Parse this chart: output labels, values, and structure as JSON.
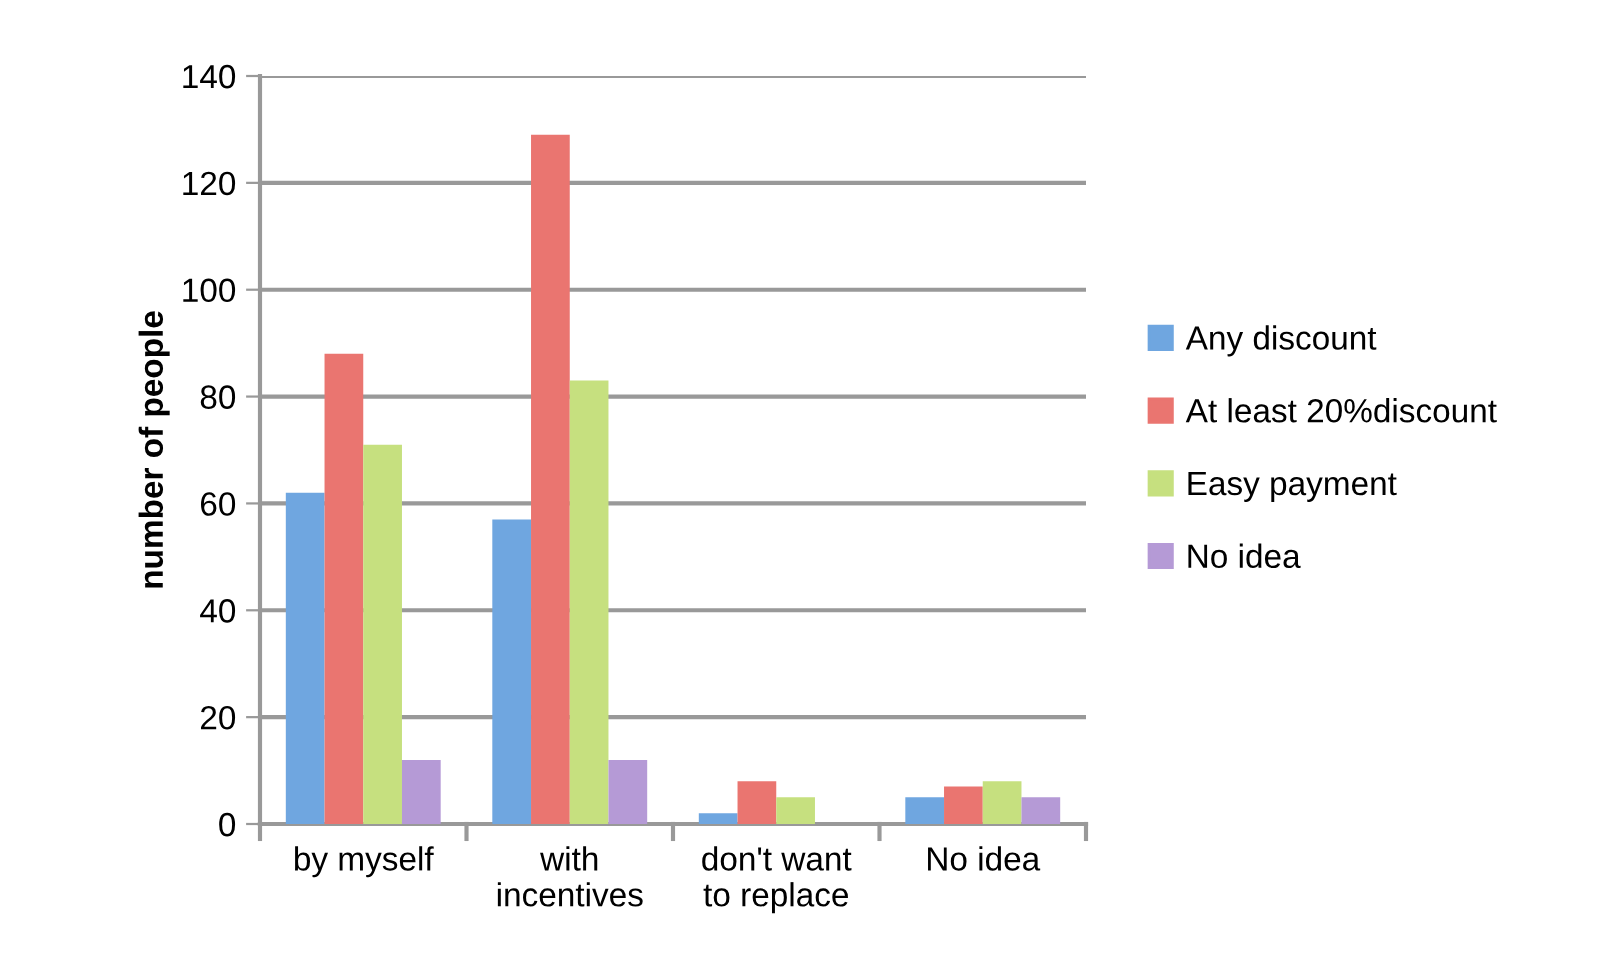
{
  "chart_data": {
    "type": "bar",
    "ylabel": "number of people",
    "categories": [
      "by myself",
      "with\nincentives",
      "don't want\nto replace",
      "No idea"
    ],
    "series": [
      {
        "name": "Any discount",
        "color": "#6fa6e0",
        "values": [
          62,
          57,
          2,
          5
        ]
      },
      {
        "name": "At least 20%discount",
        "color": "#ea7570",
        "values": [
          88,
          129,
          8,
          7
        ]
      },
      {
        "name": "Easy payment",
        "color": "#c6e07f",
        "values": [
          71,
          83,
          5,
          8
        ]
      },
      {
        "name": "No idea",
        "color": "#b59ad6",
        "values": [
          12,
          12,
          0,
          5
        ]
      }
    ],
    "ylim": [
      0,
      140
    ],
    "yticks": [
      0,
      20,
      40,
      60,
      80,
      100,
      120,
      140
    ],
    "grid": "y",
    "legend": "right"
  }
}
